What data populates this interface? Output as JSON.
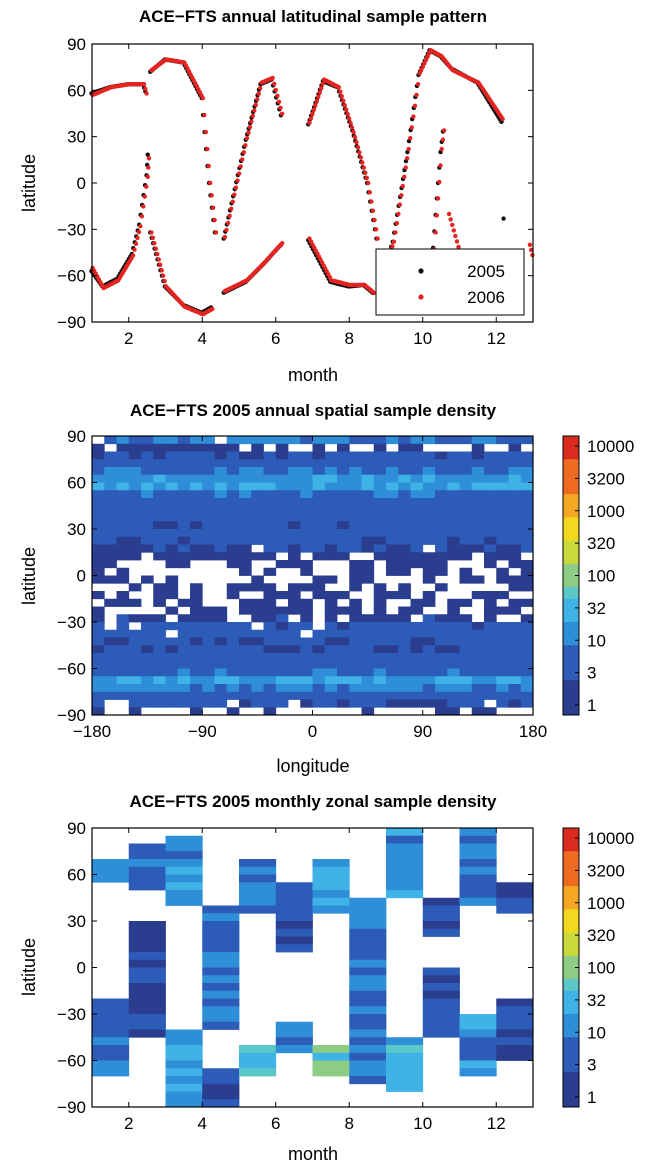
{
  "chart_data": [
    {
      "type": "scatter",
      "title": "ACE−FTS annual latitudinal sample pattern",
      "xlabel": "month",
      "ylabel": "latitude",
      "xlim": [
        1,
        13
      ],
      "ylim": [
        -90,
        90
      ],
      "xticks": [
        "2",
        "4",
        "6",
        "8",
        "10",
        "12"
      ],
      "yticks": [
        "90",
        "60",
        "30",
        "0",
        "−30",
        "−60",
        "−90"
      ],
      "legend_position": "bottom-right",
      "series": [
        {
          "name": "2005",
          "color": "#111111",
          "arcs": [
            {
              "x": [
                1.0,
                1.5,
                2.0,
                2.4,
                2.5
              ],
              "y": [
                58,
                62,
                64,
                64,
                57
              ]
            },
            {
              "x": [
                1.0,
                1.3,
                1.7,
                2.1,
                2.3,
                2.5,
                2.55
              ],
              "y": [
                -57,
                -67,
                -62,
                -46,
                -27,
                5,
                25
              ]
            },
            {
              "x": [
                2.6,
                3.0,
                3.5,
                4.0,
                4.2,
                4.4
              ],
              "y": [
                72,
                80,
                78,
                55,
                0,
                -40
              ]
            },
            {
              "x": [
                2.6,
                3.0,
                3.5,
                4.0,
                4.3
              ],
              "y": [
                -32,
                -67,
                -79,
                -84,
                -80
              ]
            },
            {
              "x": [
                4.6,
                5.2,
                5.7,
                6.0,
                6.2
              ],
              "y": [
                -71,
                -64,
                -52,
                -44,
                -39
              ]
            },
            {
              "x": [
                4.6,
                5.2,
                5.6,
                5.9,
                6.2
              ],
              "y": [
                -36,
                28,
                64,
                67,
                40
              ]
            },
            {
              "x": [
                6.9,
                7.3,
                7.7,
                8.1,
                8.5,
                8.8
              ],
              "y": [
                38,
                66,
                62,
                34,
                0,
                -42
              ]
            },
            {
              "x": [
                6.9,
                7.5,
                8.0,
                8.4,
                8.7
              ],
              "y": [
                -37,
                -64,
                -67,
                -66,
                -72
              ]
            },
            {
              "x": [
                8.9,
                9.2,
                9.6,
                9.9,
                10.2
              ],
              "y": [
                -60,
                -38,
                20,
                70,
                86
              ]
            },
            {
              "x": [
                10.2,
                10.5,
                10.8,
                11.5,
                12.2
              ],
              "y": [
                86,
                82,
                74,
                65,
                38
              ]
            },
            {
              "x": [
                10.3,
                10.4,
                10.5,
                10.6
              ],
              "y": [
                -42,
                -10,
                20,
                40
              ]
            },
            {
              "x": [
                12.2
              ],
              "y": [
                -23
              ]
            }
          ]
        },
        {
          "name": "2006",
          "color": "#e52421",
          "arcs": [
            {
              "x": [
                1.0,
                1.5,
                2.0,
                2.4,
                2.5
              ],
              "y": [
                57,
                62,
                64,
                64,
                55
              ]
            },
            {
              "x": [
                1.0,
                1.3,
                1.7,
                2.1,
                2.3,
                2.5,
                2.55
              ],
              "y": [
                -55,
                -68,
                -63,
                -47,
                -28,
                4,
                22
              ]
            },
            {
              "x": [
                2.6,
                3.0,
                3.5,
                4.0,
                4.2,
                4.4
              ],
              "y": [
                73,
                80,
                78,
                55,
                0,
                -40
              ]
            },
            {
              "x": [
                2.6,
                3.0,
                3.5,
                4.0,
                4.3
              ],
              "y": [
                -32,
                -67,
                -80,
                -85,
                -81
              ]
            },
            {
              "x": [
                4.6,
                5.2,
                5.7,
                6.0,
                6.2
              ],
              "y": [
                -70,
                -63,
                -51,
                -43,
                -38
              ]
            },
            {
              "x": [
                4.6,
                5.2,
                5.6,
                5.9,
                6.2
              ],
              "y": [
                -35,
                29,
                65,
                68,
                41
              ]
            },
            {
              "x": [
                6.9,
                7.3,
                7.7,
                8.1,
                8.5,
                8.8
              ],
              "y": [
                39,
                67,
                62,
                33,
                0,
                -42
              ]
            },
            {
              "x": [
                6.9,
                7.5,
                8.0,
                8.4,
                8.7
              ],
              "y": [
                -36,
                -63,
                -66,
                -66,
                -72
              ]
            },
            {
              "x": [
                8.9,
                9.2,
                9.6,
                9.9,
                10.2
              ],
              "y": [
                -59,
                -38,
                22,
                71,
                86
              ]
            },
            {
              "x": [
                10.2,
                10.5,
                10.8,
                11.5,
                12.2
              ],
              "y": [
                86,
                82,
                73,
                65,
                40
              ]
            },
            {
              "x": [
                10.3,
                10.4,
                10.5,
                10.6
              ],
              "y": [
                -43,
                -10,
                22,
                40
              ]
            },
            {
              "x": [
                10.7,
                11.0,
                11.2
              ],
              "y": [
                -20,
                -45,
                -62
              ]
            },
            {
              "x": [
                12.9,
                13.0
              ],
              "y": [
                -40,
                -50
              ]
            }
          ]
        }
      ]
    },
    {
      "type": "heatmap",
      "title": "ACE−FTS 2005 annual spatial sample density",
      "xlabel": "longitude",
      "ylabel": "latitude",
      "xlim": [
        -180,
        180
      ],
      "ylim": [
        -90,
        90
      ],
      "xticks": [
        "−180",
        "−90",
        "0",
        "90",
        "180"
      ],
      "yticks": [
        "90",
        "60",
        "30",
        "0",
        "−30",
        "−60",
        "−90"
      ],
      "cell_size_deg": [
        10,
        5
      ],
      "colorbar_ticks": [
        "10000",
        "3200",
        "1000",
        "320",
        "100",
        "32",
        "10",
        "3",
        "1"
      ],
      "row_levels_north_to_south": [
        1,
        0.3,
        0.6,
        0.8,
        1,
        1.2,
        1.3,
        0.9,
        0.8,
        0.8,
        0.7,
        0.6,
        0.7,
        0.6,
        0.5,
        0.3,
        0.2,
        0.1,
        0.1,
        0.2,
        0.1,
        0.2,
        0.3,
        0.4,
        0.6,
        0.7,
        0.6,
        0.6,
        0.7,
        0.7,
        0.9,
        1.3,
        1.1,
        0.7,
        0.6,
        0.3
      ],
      "row_empty_fraction": [
        0.05,
        0.5,
        0,
        0,
        0,
        0,
        0,
        0,
        0,
        0,
        0,
        0,
        0,
        0,
        0.1,
        0.3,
        0.5,
        0.55,
        0.55,
        0.5,
        0.5,
        0.45,
        0.3,
        0.2,
        0.1,
        0.05,
        0,
        0,
        0,
        0,
        0,
        0,
        0,
        0,
        0.1,
        0.55
      ]
    },
    {
      "type": "heatmap",
      "title": "ACE−FTS 2005 monthly zonal sample density",
      "xlabel": "month",
      "ylabel": "latitude",
      "xlim": [
        1,
        13
      ],
      "ylim": [
        -90,
        90
      ],
      "xticks": [
        "2",
        "4",
        "6",
        "8",
        "10",
        "12"
      ],
      "yticks": [
        "90",
        "60",
        "30",
        "0",
        "−30",
        "−60",
        "−90"
      ],
      "cell_size_deg": 5,
      "colorbar_ticks": [
        "10000",
        "3200",
        "1000",
        "320",
        "100",
        "32",
        "10",
        "3",
        "1"
      ],
      "months": [
        {
          "bands": [
            [
              55,
              70,
              1.3
            ],
            [
              -20,
              -45,
              0.6
            ],
            [
              -45,
              -70,
              1.0
            ]
          ]
        },
        {
          "bands": [
            [
              50,
              80,
              1.0
            ],
            [
              -45,
              30,
              0.4
            ]
          ]
        },
        {
          "bands": [
            [
              40,
              85,
              1.2
            ],
            [
              -40,
              -90,
              1.4
            ]
          ]
        },
        {
          "bands": [
            [
              -40,
              40,
              0.9
            ],
            [
              -65,
              -75,
              0.8
            ],
            [
              -75,
              -90,
              0.5
            ]
          ]
        },
        {
          "bands": [
            [
              35,
              70,
              1.1
            ],
            [
              -50,
              -70,
              1.6
            ]
          ]
        },
        {
          "bands": [
            [
              45,
              55,
              1.0
            ],
            [
              10,
              45,
              0.7
            ],
            [
              -35,
              -55,
              1.2
            ]
          ]
        },
        {
          "bands": [
            [
              35,
              70,
              1.3
            ],
            [
              -50,
              -70,
              1.8
            ]
          ]
        },
        {
          "bands": [
            [
              -75,
              45,
              1.0
            ]
          ]
        },
        {
          "bands": [
            [
              45,
              90,
              1.2
            ],
            [
              -45,
              -80,
              1.4
            ]
          ]
        },
        {
          "bands": [
            [
              20,
              45,
              0.5
            ],
            [
              -45,
              0,
              0.6
            ]
          ]
        },
        {
          "bands": [
            [
              40,
              90,
              1.0
            ],
            [
              -30,
              -70,
              1.1
            ]
          ]
        },
        {
          "bands": [
            [
              35,
              55,
              0.5
            ],
            [
              -20,
              -60,
              0.6
            ]
          ]
        }
      ]
    }
  ]
}
